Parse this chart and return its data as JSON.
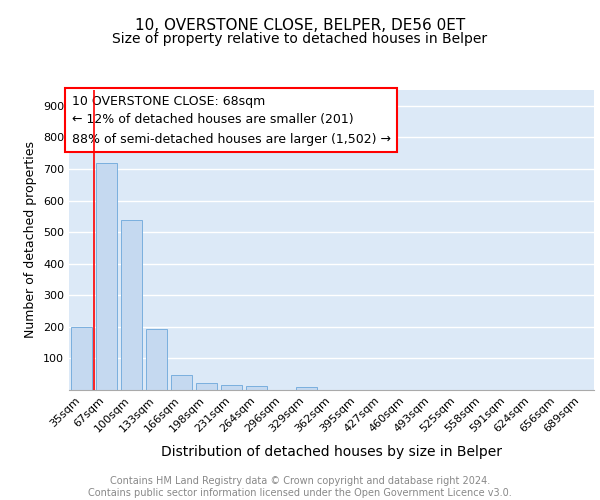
{
  "title1": "10, OVERSTONE CLOSE, BELPER, DE56 0ET",
  "title2": "Size of property relative to detached houses in Belper",
  "xlabel": "Distribution of detached houses by size in Belper",
  "ylabel": "Number of detached properties",
  "categories": [
    "35sqm",
    "67sqm",
    "100sqm",
    "133sqm",
    "166sqm",
    "198sqm",
    "231sqm",
    "264sqm",
    "296sqm",
    "329sqm",
    "362sqm",
    "395sqm",
    "427sqm",
    "460sqm",
    "493sqm",
    "525sqm",
    "558sqm",
    "591sqm",
    "624sqm",
    "656sqm",
    "689sqm"
  ],
  "values": [
    200,
    720,
    538,
    192,
    47,
    22,
    15,
    13,
    0,
    10,
    0,
    0,
    0,
    0,
    0,
    0,
    0,
    0,
    0,
    0,
    0
  ],
  "bar_color": "#c5d9f0",
  "bar_edge_color": "#7aafde",
  "red_line_x": 0.5,
  "annotation_lines": [
    "10 OVERSTONE CLOSE: 68sqm",
    "← 12% of detached houses are smaller (201)",
    "88% of semi-detached houses are larger (1,502) →"
  ],
  "annotation_box_color": "white",
  "annotation_box_edge_color": "red",
  "ylim": [
    0,
    950
  ],
  "yticks": [
    100,
    200,
    300,
    400,
    500,
    600,
    700,
    800,
    900
  ],
  "bg_color": "#dce9f7",
  "grid_color": "white",
  "footer_text": "Contains HM Land Registry data © Crown copyright and database right 2024.\nContains public sector information licensed under the Open Government Licence v3.0.",
  "title1_fontsize": 11,
  "title2_fontsize": 10,
  "xlabel_fontsize": 10,
  "ylabel_fontsize": 9,
  "tick_fontsize": 8,
  "annotation_fontsize": 9,
  "footer_fontsize": 7
}
